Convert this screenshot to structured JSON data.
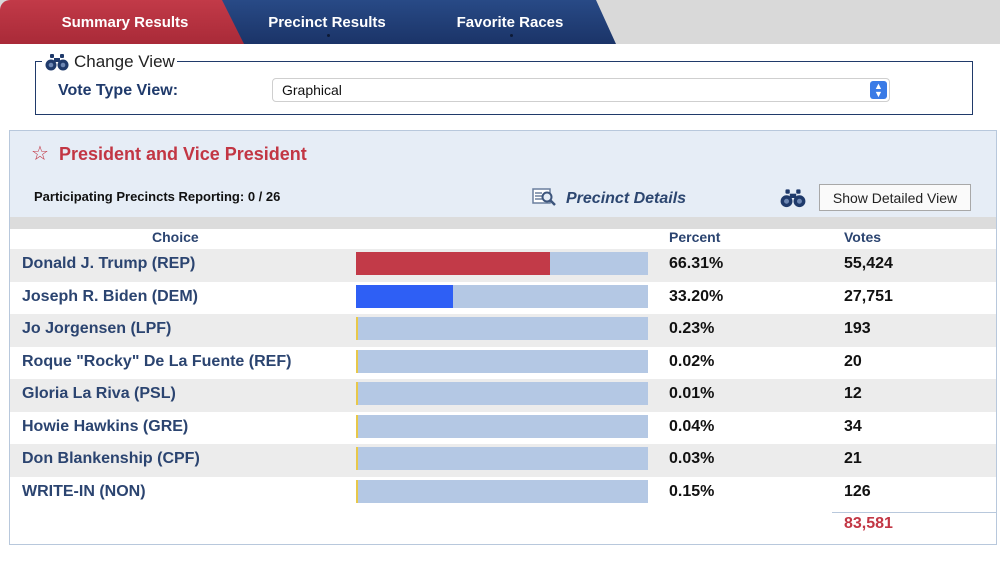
{
  "tabs": {
    "summary": "Summary Results",
    "precinct": "Precinct Results",
    "favorite": "Favorite Races"
  },
  "change_view": {
    "legend": "Change View",
    "vote_type_label": "Vote Type View:",
    "vote_type_value": "Graphical"
  },
  "race": {
    "title": "President and Vice President",
    "reporting": "Participating Precincts Reporting: 0 / 26",
    "precinct_details": "Precinct Details",
    "show_detailed_view": "Show Detailed View",
    "headers": {
      "choice": "Choice",
      "percent": "Percent",
      "votes": "Votes"
    },
    "candidates": [
      {
        "name": "Donald J. Trump (REP)",
        "percent": "66.31%",
        "share": 0.6631,
        "votes": "55,424",
        "color": "#c23a48"
      },
      {
        "name": "Joseph R. Biden (DEM)",
        "percent": "33.20%",
        "share": 0.332,
        "votes": "27,751",
        "color": "#2e5ff5"
      },
      {
        "name": "Jo Jorgensen (LPF)",
        "percent": "0.23%",
        "share": 0.0023,
        "votes": "193",
        "color": "#e8c84a"
      },
      {
        "name": "Roque \"Rocky\" De La Fuente (REF)",
        "percent": "0.02%",
        "share": 0.0002,
        "votes": "20",
        "color": "#e8c84a"
      },
      {
        "name": "Gloria La Riva (PSL)",
        "percent": "0.01%",
        "share": 0.0001,
        "votes": "12",
        "color": "#e8c84a"
      },
      {
        "name": "Howie Hawkins (GRE)",
        "percent": "0.04%",
        "share": 0.0004,
        "votes": "34",
        "color": "#e8c84a"
      },
      {
        "name": "Don Blankenship (CPF)",
        "percent": "0.03%",
        "share": 0.0003,
        "votes": "21",
        "color": "#e8c84a"
      },
      {
        "name": "WRITE-IN (NON)",
        "percent": "0.15%",
        "share": 0.0015,
        "votes": "126",
        "color": "#e8c84a"
      }
    ],
    "total_votes": "83,581"
  },
  "colors": {
    "red_accent": "#c23644",
    "navy": "#1f3a6b",
    "bar_track": "#b4c8e4"
  }
}
